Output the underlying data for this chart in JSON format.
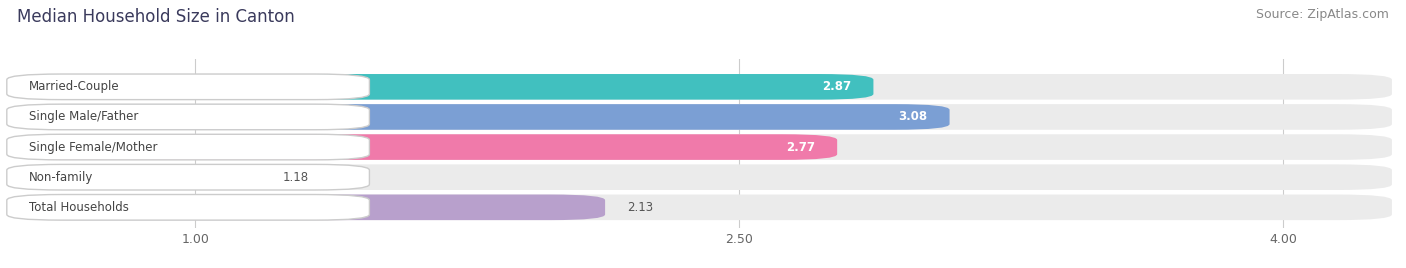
{
  "title": "Median Household Size in Canton",
  "source": "Source: ZipAtlas.com",
  "categories": [
    "Married-Couple",
    "Single Male/Father",
    "Single Female/Mother",
    "Non-family",
    "Total Households"
  ],
  "values": [
    2.87,
    3.08,
    2.77,
    1.18,
    2.13
  ],
  "bar_colors": [
    "#41c0bf",
    "#7b9fd4",
    "#f07aaa",
    "#f5c88a",
    "#b8a0cc"
  ],
  "bar_edge_colors": [
    "#41c0bf",
    "#7b9fd4",
    "#f07aaa",
    "#f5c88a",
    "#b8a0cc"
  ],
  "value_in_bar": [
    true,
    true,
    true,
    false,
    false
  ],
  "xlim_min": 0.5,
  "xlim_max": 4.3,
  "xticks": [
    1.0,
    2.5,
    4.0
  ],
  "background_color": "#ffffff",
  "bar_bg_color": "#ebebeb",
  "title_fontsize": 12,
  "source_fontsize": 9,
  "label_fontsize": 8.5,
  "value_fontsize": 8.5
}
